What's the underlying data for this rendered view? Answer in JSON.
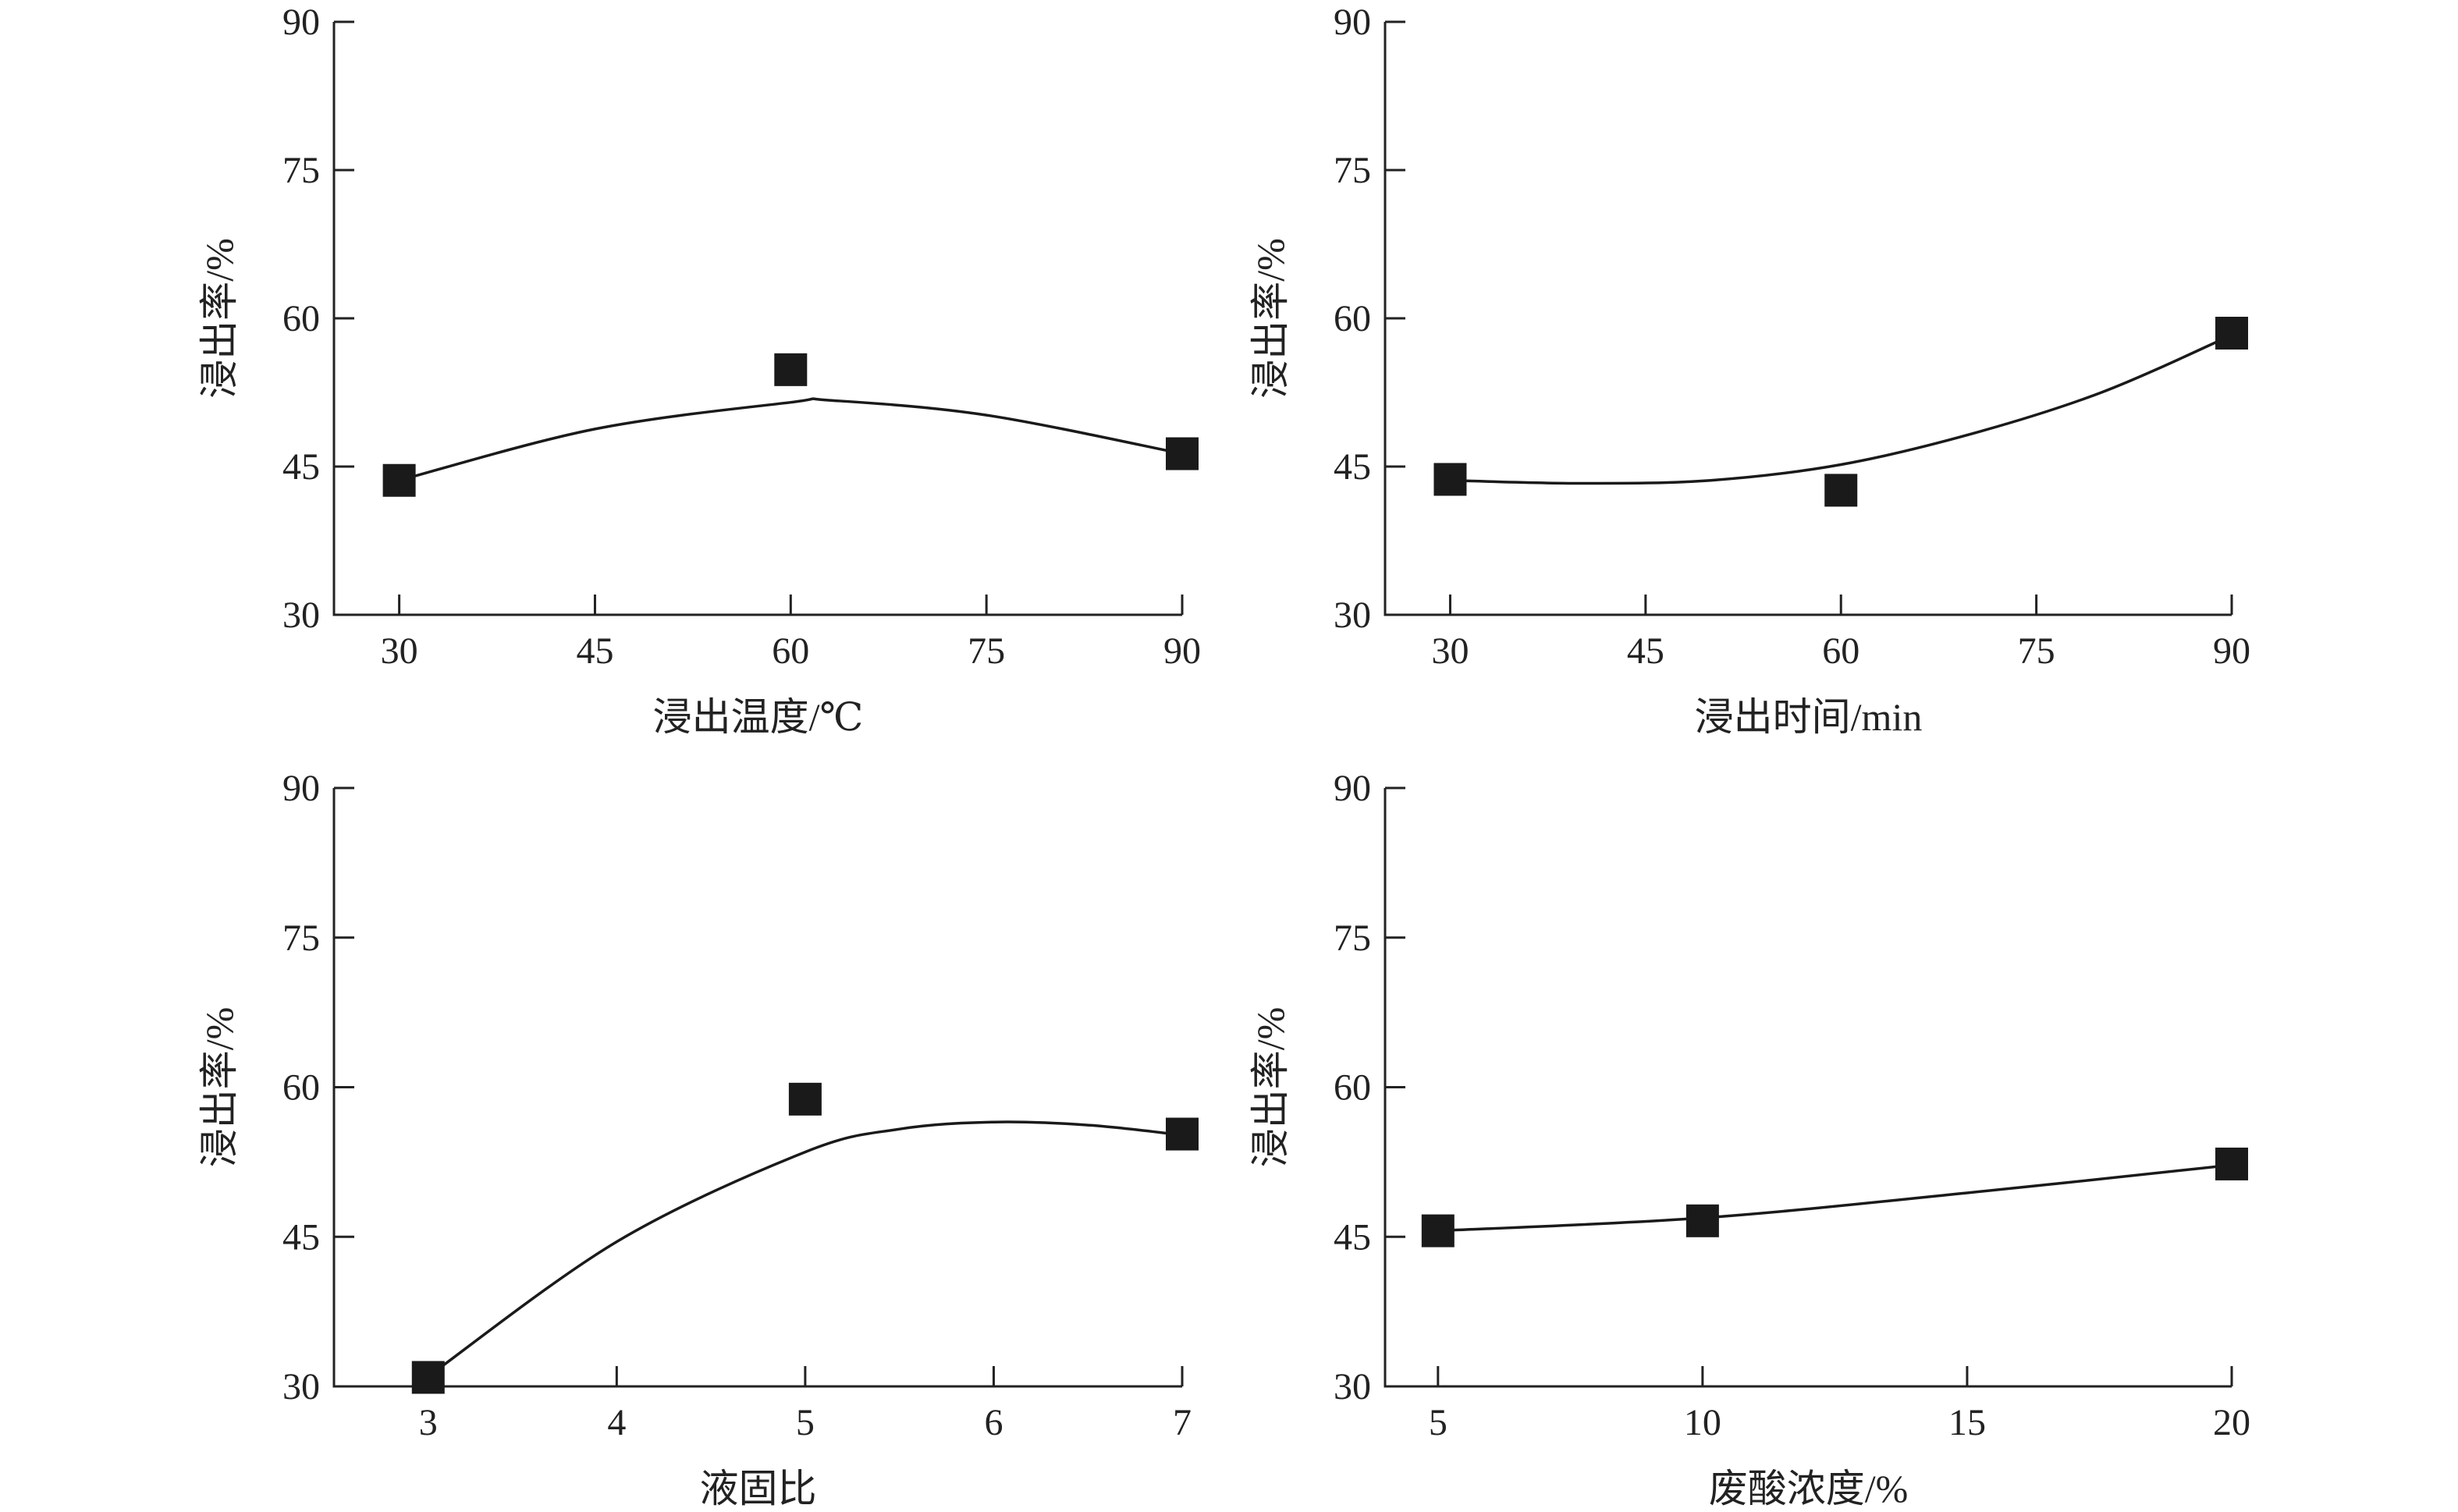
{
  "chart_data": [
    {
      "type": "scatter",
      "xlabel": "浸出温度/℃",
      "ylabel": "浸出率/%",
      "xlim": [
        25,
        90
      ],
      "ylim": [
        30,
        90
      ],
      "xticks": [
        "30",
        "45",
        "60",
        "75",
        "90"
      ],
      "yticks": [
        "30",
        "45",
        "60",
        "75",
        "90"
      ],
      "points": {
        "x": [
          30,
          60,
          90
        ],
        "y": [
          43.6,
          54.8,
          46.3
        ]
      },
      "fit_curve": {
        "x": [
          30,
          45,
          60,
          63,
          75,
          90
        ],
        "y": [
          43.6,
          48.8,
          51.5,
          51.7,
          50.2,
          46.3
        ]
      },
      "grid": false
    },
    {
      "type": "scatter",
      "xlabel": "浸出时间/min",
      "ylabel": "浸出率/%",
      "xlim": [
        25,
        90
      ],
      "ylim": [
        30,
        90
      ],
      "xticks": [
        "30",
        "45",
        "60",
        "75",
        "90"
      ],
      "yticks": [
        "30",
        "45",
        "60",
        "75",
        "90"
      ],
      "points": {
        "x": [
          30,
          60,
          90
        ],
        "y": [
          43.7,
          42.6,
          58.5
        ]
      },
      "fit_curve": {
        "x": [
          30,
          40,
          50,
          60,
          70,
          80,
          90
        ],
        "y": [
          43.6,
          43.3,
          43.6,
          45.2,
          48.3,
          52.5,
          58.3
        ]
      },
      "grid": false
    },
    {
      "type": "scatter",
      "xlabel": "液固比",
      "ylabel": "浸出率/%",
      "xlim": [
        2.5,
        7
      ],
      "ylim": [
        30,
        90
      ],
      "xticks": [
        "3",
        "4",
        "5",
        "6",
        "7"
      ],
      "yticks": [
        "30",
        "45",
        "60",
        "75",
        "90"
      ],
      "points": {
        "x": [
          3,
          5,
          7
        ],
        "y": [
          30.9,
          58.8,
          55.3
        ]
      },
      "fit_curve": {
        "x": [
          3,
          4,
          5,
          5.5,
          6,
          6.5,
          7
        ],
        "y": [
          31.0,
          44.5,
          53.5,
          55.8,
          56.5,
          56.2,
          55.2
        ]
      },
      "grid": false
    },
    {
      "type": "scatter",
      "xlabel": "废酸浓度/%",
      "ylabel": "浸出率/%",
      "xlim": [
        4,
        20
      ],
      "ylim": [
        30,
        90
      ],
      "xticks": [
        "5",
        "10",
        "15",
        "20"
      ],
      "yticks": [
        "30",
        "45",
        "60",
        "75",
        "90"
      ],
      "points": {
        "x": [
          5,
          10,
          20
        ],
        "y": [
          45.6,
          46.6,
          52.3
        ]
      },
      "fit_curve": {
        "x": [
          5,
          10,
          15,
          20
        ],
        "y": [
          45.6,
          46.9,
          49.4,
          52.2
        ]
      },
      "grid": false
    }
  ]
}
